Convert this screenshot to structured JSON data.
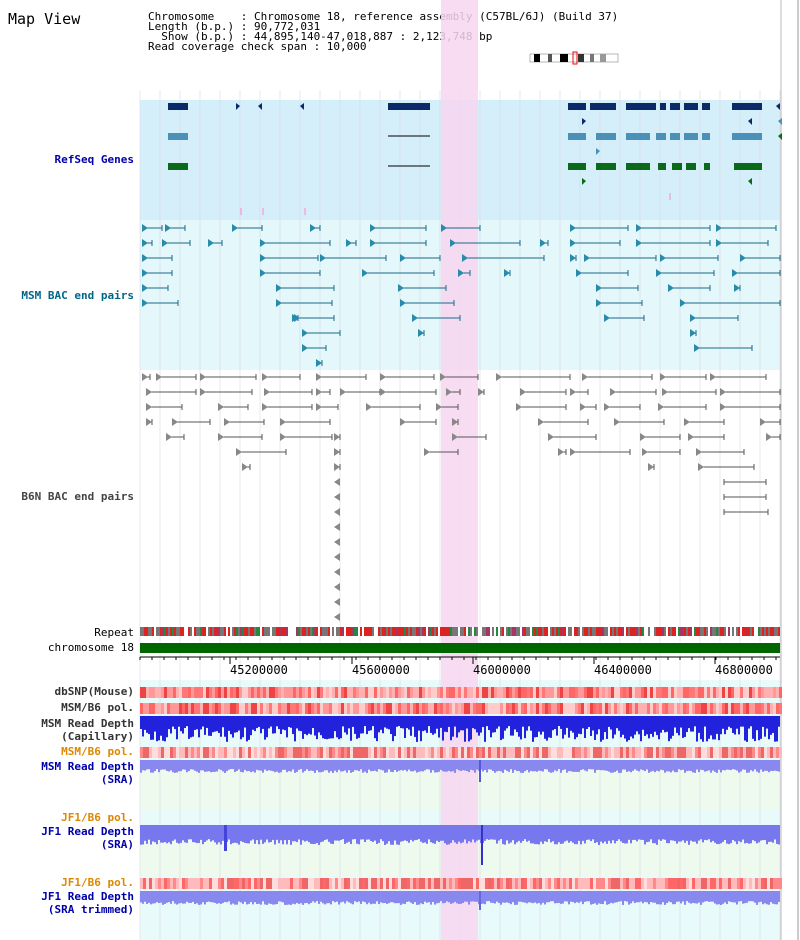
{
  "title": "Map View",
  "info": {
    "chromosome_line": "Chromosome    : Chromosome 18, reference assembly (C57BL/6J) (Build 37)",
    "length_line": "Length (b.p.) : 90,772,031",
    "show_line": "  Show (b.p.) : 44,895,140-47,018,887 : 2,123,748 bp",
    "coverage_line": "Read coverage check span : 10,000"
  },
  "tracks": {
    "refseq": "RefSeq Genes",
    "msm_bac": "MSM BAC end pairs",
    "b6n_bac": "B6N BAC end pairs",
    "repeat": "Repeat",
    "chromosome": "chromosome 18",
    "dbsnp": "dbSNP(Mouse)",
    "msm_b6_pol_1": "MSM/B6 pol.",
    "msm_depth_cap_1": "MSM Read Depth",
    "msm_depth_cap_2": "(Capillary)",
    "msm_b6_pol_2": "MSM/B6 pol.",
    "msm_depth_sra_1": "MSM Read Depth",
    "msm_depth_sra_2": "(SRA)",
    "jf1_b6_pol_1": "JF1/B6 pol.",
    "jf1_depth_sra_1": "JF1 Read Depth",
    "jf1_depth_sra_2": "(SRA)",
    "jf1_b6_pol_2": "JF1/B6 pol.",
    "jf1_depth_trim_1": "JF1 Read Depth",
    "jf1_depth_trim_2": "(SRA trimmed)"
  },
  "axis": {
    "ticks": [
      "45200000",
      "45600000",
      "46000000",
      "46400000",
      "46800000"
    ]
  },
  "colors": {
    "refseq_bg": "#d4eefa",
    "msm_bg": "#e4f7fa",
    "highlight": "#f7d6f0",
    "gene_dark": "#0a2a6a",
    "gene_mid": "#4a90b8",
    "gene_green": "#0b6a1a",
    "chrom_green": "#006600",
    "depth_blue": "#2222dd",
    "depth_light": "#8888ee"
  }
}
